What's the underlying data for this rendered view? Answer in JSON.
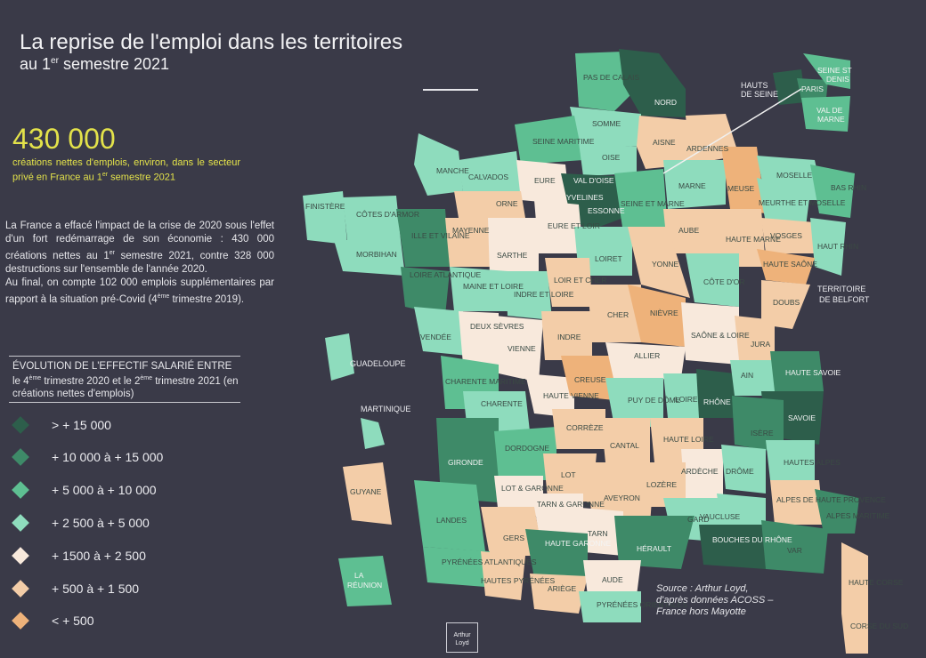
{
  "header": {
    "title": "La reprise de l'emploi dans les territoires",
    "subtitle_prefix": "au 1",
    "subtitle_sup": "er",
    "subtitle_suffix": " semestre 2021"
  },
  "highlight": {
    "value": "430 000",
    "desc_1": "créations nettes d'emplois, environ, dans le secteur privé en France au 1",
    "desc_sup": "er",
    "desc_2": " semestre 2021"
  },
  "paragraph": {
    "line_a": "La France a effacé l'impact de la crise de 2020 sous l'effet d'un fort redémarrage de son économie : 430 000 créations nettes au 1",
    "sup_a": "er",
    "line_b": " semestre 2021, contre 328 000 destructions sur l'ensemble de l'année 2020.",
    "line_c": "Au final, on compte 102 000 emplois supplémentaires par rapport à la situation pré-Covid (4",
    "sup_c": "ème",
    "line_d": " trimestre 2019)."
  },
  "legend": {
    "title_1": "ÉVOLUTION DE L'EFFECTIF SALARIÉ ENTRE le 4",
    "sup_1": "ème",
    "title_2": " trimestre 2020 et le 2",
    "sup_2": "ème",
    "title_3": " trimestre 2021 (en créations nettes d'emplois)",
    "items": [
      {
        "label": "> + 15 000",
        "color": "#2d5e4b"
      },
      {
        "label": "+ 10 000 à + 15 000",
        "color": "#3e8a68"
      },
      {
        "label": "+ 5 000 à + 10 000",
        "color": "#5ebf92"
      },
      {
        "label": "+ 2 500 à + 5 000",
        "color": "#8edcbd"
      },
      {
        "label": "+ 1500 à + 2 500",
        "color": "#f8e9dc"
      },
      {
        "label": "+ 500 à + 1 500",
        "color": "#f3cda8"
      },
      {
        "label": "< + 500",
        "color": "#eeb27a"
      }
    ]
  },
  "map_labels": {
    "idf_inset": [
      "HAUTS DE SEINE",
      "PARIS",
      "SEINE ST DENIS",
      "VAL DE MARNE"
    ],
    "territoire_belfort": "TERRITOIRE DE BELFORT",
    "overseas": [
      "GUADELOUPE",
      "MARTINIQUE",
      "GUYANE",
      "LA RÉUNION"
    ]
  },
  "source": {
    "line1": "Source : Arthur Loyd,",
    "line2": "d'après données ACOSS –",
    "line3": "France hors Mayotte"
  },
  "logo": {
    "line1": "Arthur",
    "line2": "Loyd"
  },
  "departments": [
    "PAS DE CALAIS",
    "NORD",
    "SOMME",
    "AISNE",
    "ARDENNES",
    "SEINE MARITIME",
    "OISE",
    "MANCHE",
    "CALVADOS",
    "EURE",
    "VAL D'OISE",
    "YVELINES",
    "ESSONNE",
    "SEINE ET MARNE",
    "MARNE",
    "MEUSE",
    "MOSELLE",
    "BAS RHIN",
    "FINISTÈRE",
    "CÔTES D'ARMOR",
    "MORBIHAN",
    "ILLE ET VILAINE",
    "ORNE",
    "MAYENNE",
    "SARTHE",
    "EURE ET LOIR",
    "LOIRET",
    "AUBE",
    "HAUTE MARNE",
    "MEURTHE ET MOSELLE",
    "VOSGES",
    "HAUT RHIN",
    "LOIRE ATLANTIQUE",
    "MAINE ET LOIRE",
    "INDRE ET LOIRE",
    "LOIR ET CHER",
    "YONNE",
    "CÔTE D'OR",
    "HAUTE SAÔNE",
    "DOUBS",
    "VENDÉE",
    "DEUX SÈVRES",
    "VIENNE",
    "INDRE",
    "CHER",
    "NIÈVRE",
    "SAÔNE & LOIRE",
    "JURA",
    "CHARENTE MARITIME",
    "CHARENTE",
    "HAUTE VIENNE",
    "CREUSE",
    "ALLIER",
    "PUY DE DÔME",
    "LOIRE",
    "RHÔNE",
    "AIN",
    "HAUTE SAVOIE",
    "SAVOIE",
    "ISÈRE",
    "GIRONDE",
    "DORDOGNE",
    "CORRÈZE",
    "CANTAL",
    "HAUTE LOIRE",
    "ARDÈCHE",
    "DRÔME",
    "HAUTES ALPES",
    "LOT",
    "LOT & GARONNE",
    "AVEYRON",
    "LOZÈRE",
    "ALPES DE HAUTE PROVENCE",
    "ALPES MARITIME",
    "LANDES",
    "TARN & GARONNE",
    "GARD",
    "VAUCLUSE",
    "GERS",
    "TARN",
    "HAUTE GARONNE",
    "HÉRAULT",
    "BOUCHES DU RHÔNE",
    "VAR",
    "PYRÉNÉES ATLANTIQUES",
    "HAUTES PYRÉNÉES",
    "ARIÈGE",
    "AUDE",
    "PYRÉNÉES ORIENTALES",
    "HAUTE CORSE",
    "CORSE DU SUD"
  ]
}
